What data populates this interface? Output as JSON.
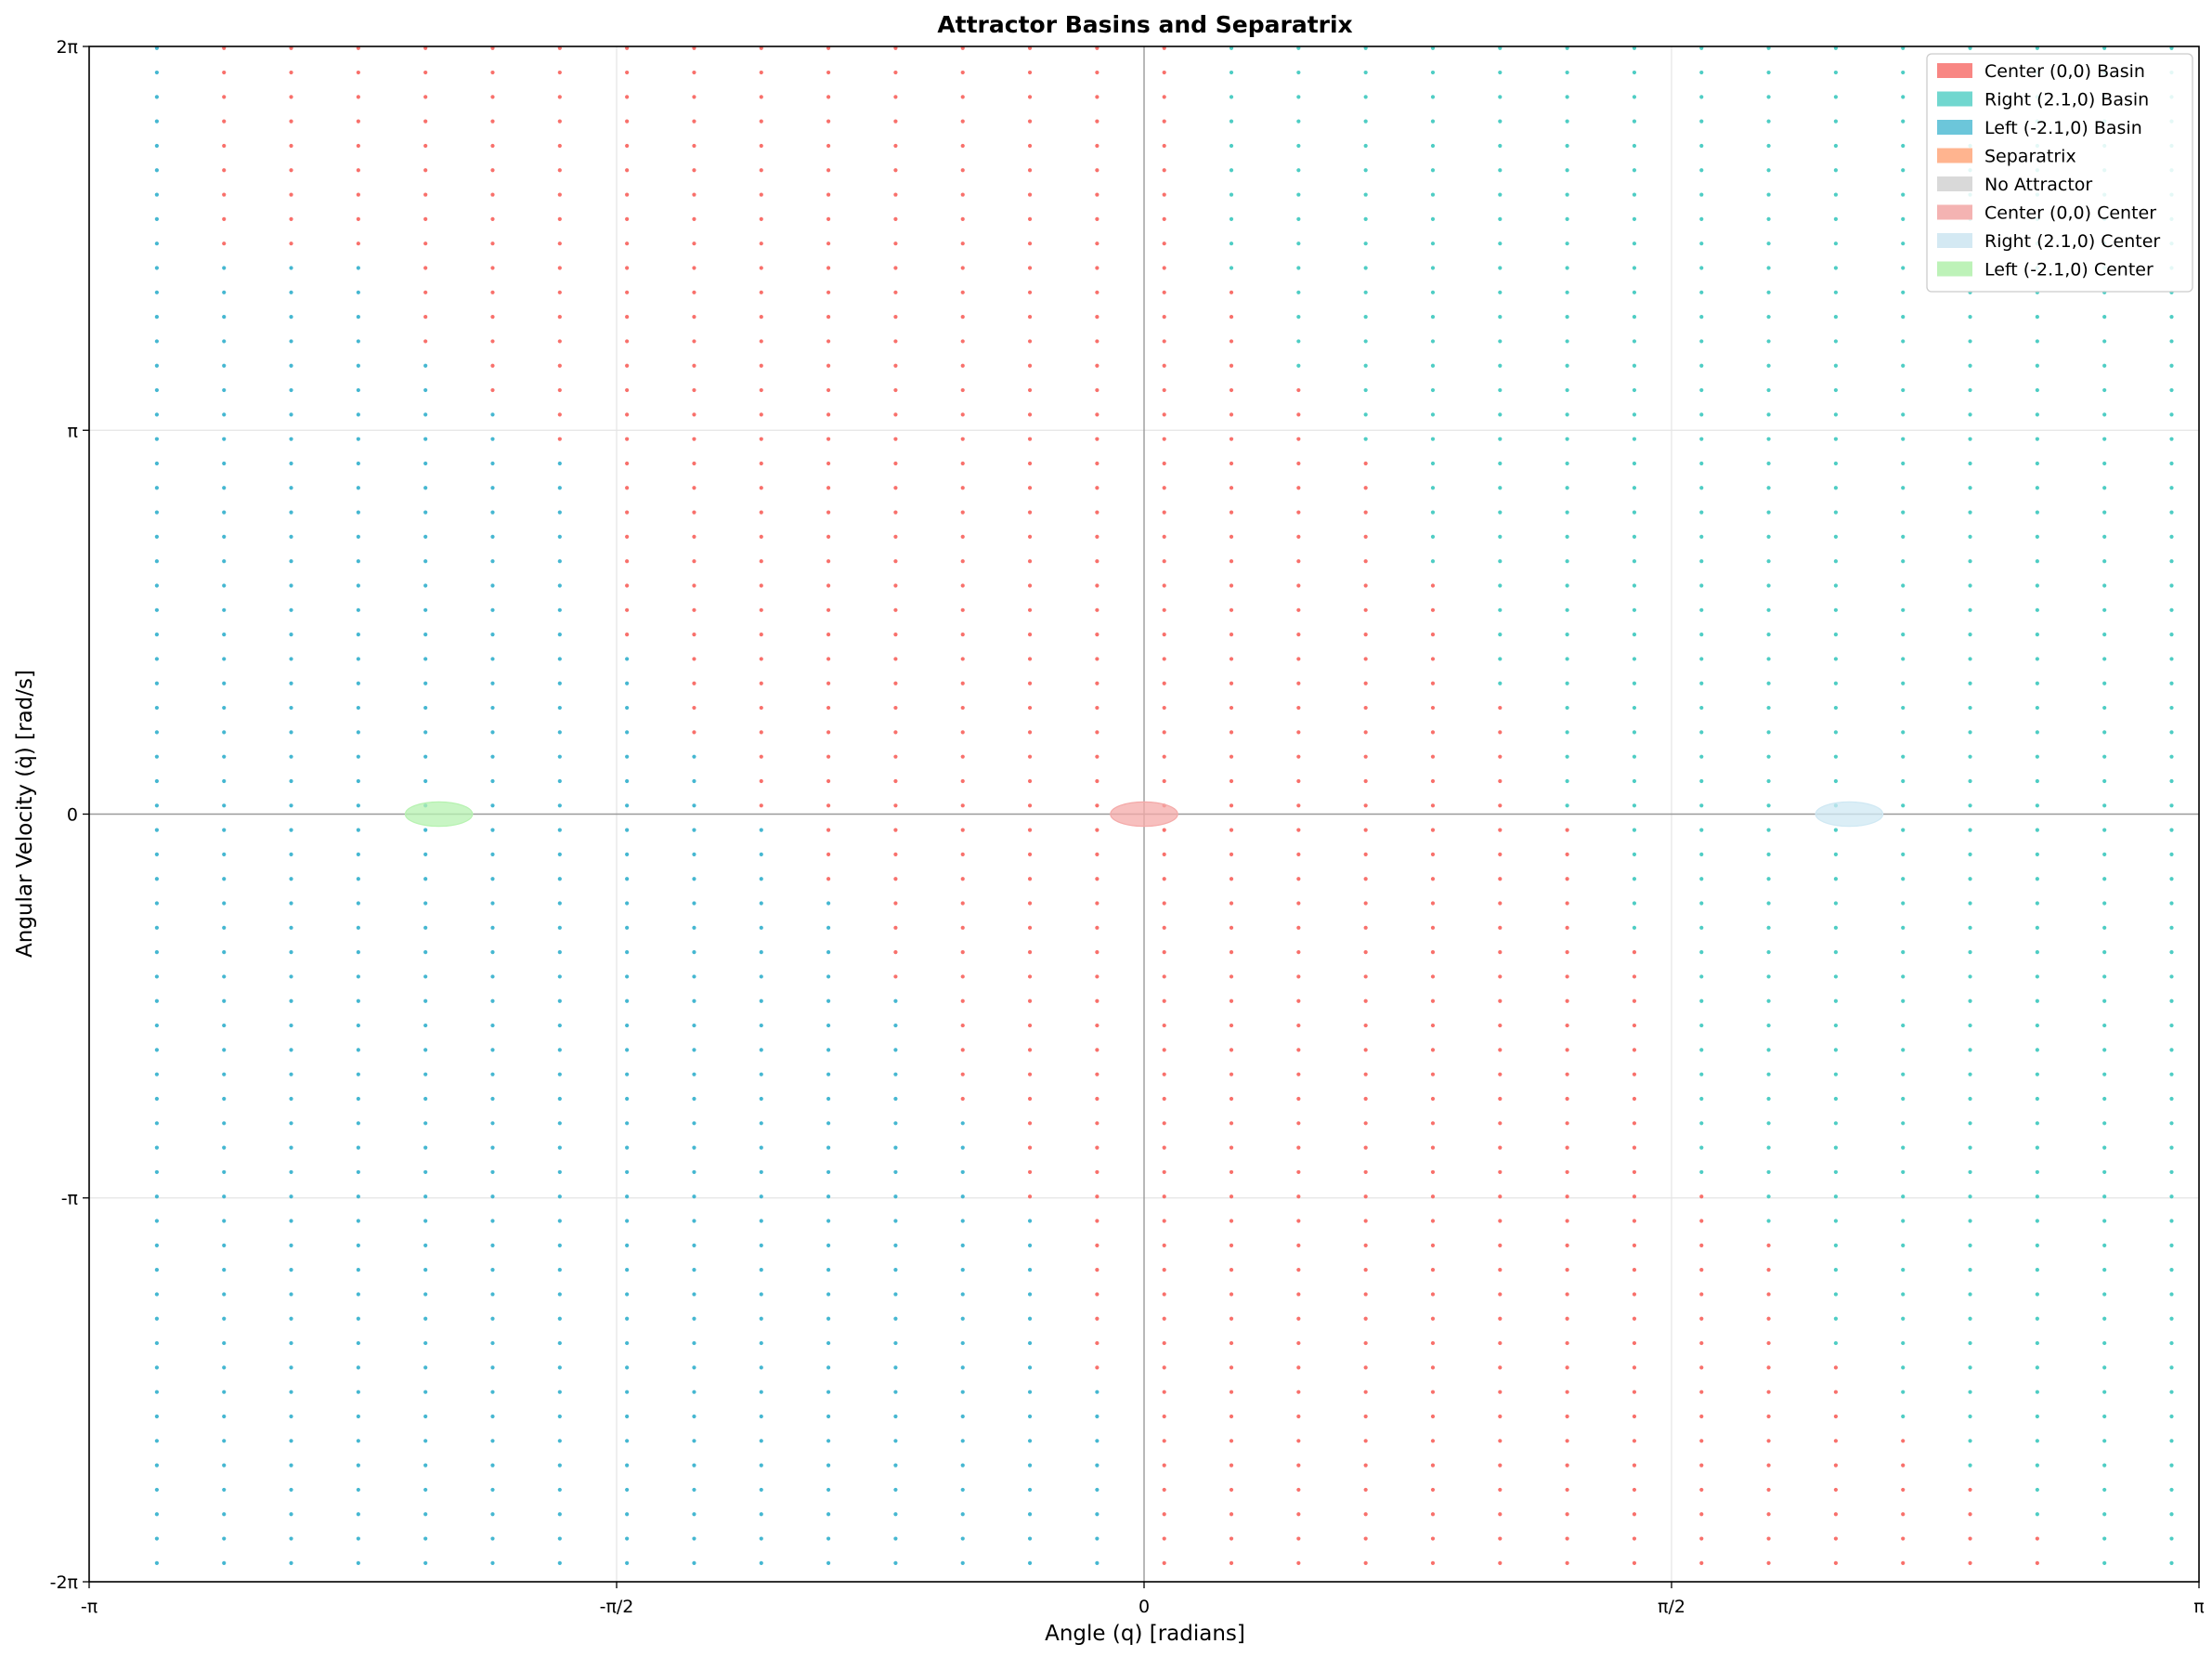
{
  "chart_data": {
    "type": "scatter",
    "title": "Attractor Basins and Separatrix",
    "xlabel": "Angle (q) [radians]",
    "ylabel": "Angular Velocity (q̇) [rad/s]",
    "xlim": [
      -3.14159,
      3.14159
    ],
    "ylim": [
      -6.28319,
      6.28319
    ],
    "x_ticks": [
      {
        "value": -3.14159,
        "label": "-π"
      },
      {
        "value": -1.5708,
        "label": "-π/2"
      },
      {
        "value": 0,
        "label": "0"
      },
      {
        "value": 1.5708,
        "label": "π/2"
      },
      {
        "value": 3.14159,
        "label": "π"
      }
    ],
    "y_ticks": [
      {
        "value": -6.28319,
        "label": "-2π"
      },
      {
        "value": -3.14159,
        "label": "-π"
      },
      {
        "value": 0,
        "label": "0"
      },
      {
        "value": 3.14159,
        "label": "π"
      },
      {
        "value": 6.28319,
        "label": "2π"
      }
    ],
    "grid": true,
    "legend_position": "top-right",
    "grid_sampling": {
      "x_start": -2.94,
      "x_step": 0.2,
      "x_count": 31,
      "y_start": -6.13,
      "y_step": 0.2,
      "y_count": 63
    },
    "basin_columns": [
      {
        "x": -2.94,
        "segments": [
          {
            "from": -6.13,
            "to": 6.28,
            "basin": "left"
          }
        ]
      },
      {
        "x": -2.74,
        "segments": [
          {
            "from": -6.13,
            "to": 4.6,
            "basin": "left"
          },
          {
            "from": 4.6,
            "to": 6.28,
            "basin": "center"
          }
        ]
      },
      {
        "x": -2.54,
        "segments": [
          {
            "from": -6.13,
            "to": 4.6,
            "basin": "left"
          },
          {
            "from": 4.6,
            "to": 6.28,
            "basin": "center"
          }
        ]
      },
      {
        "x": -2.34,
        "segments": [
          {
            "from": -6.13,
            "to": 4.6,
            "basin": "left"
          },
          {
            "from": 4.6,
            "to": 6.28,
            "basin": "center"
          }
        ]
      },
      {
        "x": -2.14,
        "segments": [
          {
            "from": -6.13,
            "to": 3.8,
            "basin": "left"
          },
          {
            "from": 3.8,
            "to": 6.28,
            "basin": "center"
          }
        ]
      },
      {
        "x": -1.94,
        "segments": [
          {
            "from": -6.13,
            "to": 3.4,
            "basin": "left"
          },
          {
            "from": 3.4,
            "to": 6.28,
            "basin": "center"
          }
        ]
      },
      {
        "x": -1.74,
        "segments": [
          {
            "from": -6.13,
            "to": 3.0,
            "basin": "left"
          },
          {
            "from": 3.0,
            "to": 6.28,
            "basin": "center"
          }
        ]
      },
      {
        "x": -1.54,
        "segments": [
          {
            "from": -6.13,
            "to": 1.4,
            "basin": "left"
          },
          {
            "from": 1.4,
            "to": 6.28,
            "basin": "center"
          }
        ]
      },
      {
        "x": -1.34,
        "segments": [
          {
            "from": -6.13,
            "to": 0.6,
            "basin": "left"
          },
          {
            "from": 0.6,
            "to": 6.28,
            "basin": "center"
          }
        ]
      },
      {
        "x": -1.14,
        "segments": [
          {
            "from": -6.13,
            "to": 0.0,
            "basin": "left"
          },
          {
            "from": 0.0,
            "to": 6.28,
            "basin": "center"
          }
        ]
      },
      {
        "x": -0.94,
        "segments": [
          {
            "from": -6.13,
            "to": -0.6,
            "basin": "left"
          },
          {
            "from": -0.6,
            "to": 6.28,
            "basin": "center"
          }
        ]
      },
      {
        "x": -0.74,
        "segments": [
          {
            "from": -6.13,
            "to": -1.5,
            "basin": "left"
          },
          {
            "from": -1.5,
            "to": 6.28,
            "basin": "center"
          }
        ]
      },
      {
        "x": -0.54,
        "segments": [
          {
            "from": -6.13,
            "to": -2.5,
            "basin": "left"
          },
          {
            "from": -2.5,
            "to": 6.28,
            "basin": "center"
          }
        ]
      },
      {
        "x": -0.34,
        "segments": [
          {
            "from": -6.13,
            "to": -3.3,
            "basin": "left"
          },
          {
            "from": -3.3,
            "to": 6.28,
            "basin": "center"
          }
        ]
      },
      {
        "x": -0.14,
        "segments": [
          {
            "from": -6.13,
            "to": -4.7,
            "basin": "left"
          },
          {
            "from": -4.7,
            "to": 6.28,
            "basin": "center"
          }
        ]
      },
      {
        "x": 0.06,
        "segments": [
          {
            "from": -6.13,
            "to": 6.28,
            "basin": "center"
          }
        ]
      },
      {
        "x": 0.26,
        "segments": [
          {
            "from": -6.13,
            "to": 4.4,
            "basin": "center"
          },
          {
            "from": 4.4,
            "to": 6.28,
            "basin": "right"
          }
        ]
      },
      {
        "x": 0.46,
        "segments": [
          {
            "from": -6.13,
            "to": 3.6,
            "basin": "center"
          },
          {
            "from": 3.6,
            "to": 6.28,
            "basin": "right"
          }
        ]
      },
      {
        "x": 0.66,
        "segments": [
          {
            "from": -6.13,
            "to": 3.0,
            "basin": "center"
          },
          {
            "from": 3.0,
            "to": 6.28,
            "basin": "right"
          }
        ]
      },
      {
        "x": 0.86,
        "segments": [
          {
            "from": -6.13,
            "to": 2.0,
            "basin": "center"
          },
          {
            "from": 2.0,
            "to": 6.28,
            "basin": "right"
          }
        ]
      },
      {
        "x": 1.06,
        "segments": [
          {
            "from": -6.13,
            "to": 1.0,
            "basin": "center"
          },
          {
            "from": 1.0,
            "to": 6.28,
            "basin": "right"
          }
        ]
      },
      {
        "x": 1.26,
        "segments": [
          {
            "from": -6.13,
            "to": 0.0,
            "basin": "center"
          },
          {
            "from": 0.0,
            "to": 6.28,
            "basin": "right"
          }
        ]
      },
      {
        "x": 1.46,
        "segments": [
          {
            "from": -6.13,
            "to": -1.0,
            "basin": "center"
          },
          {
            "from": -1.0,
            "to": 6.28,
            "basin": "right"
          }
        ]
      },
      {
        "x": 1.66,
        "segments": [
          {
            "from": -6.13,
            "to": -3.0,
            "basin": "center"
          },
          {
            "from": -3.0,
            "to": 6.28,
            "basin": "right"
          }
        ]
      },
      {
        "x": 1.86,
        "segments": [
          {
            "from": -6.13,
            "to": -3.5,
            "basin": "center"
          },
          {
            "from": -3.5,
            "to": 6.28,
            "basin": "right"
          }
        ]
      },
      {
        "x": 2.06,
        "segments": [
          {
            "from": -6.13,
            "to": -4.5,
            "basin": "center"
          },
          {
            "from": -4.5,
            "to": 6.28,
            "basin": "right"
          }
        ]
      },
      {
        "x": 2.26,
        "segments": [
          {
            "from": -6.13,
            "to": -5.0,
            "basin": "center"
          },
          {
            "from": -5.0,
            "to": 6.28,
            "basin": "right"
          }
        ]
      },
      {
        "x": 2.46,
        "segments": [
          {
            "from": -6.13,
            "to": -5.4,
            "basin": "center"
          },
          {
            "from": -5.4,
            "to": 6.28,
            "basin": "right"
          }
        ]
      },
      {
        "x": 2.66,
        "segments": [
          {
            "from": -6.13,
            "to": -5.8,
            "basin": "center"
          },
          {
            "from": -5.8,
            "to": 6.28,
            "basin": "right"
          }
        ]
      },
      {
        "x": 2.86,
        "segments": [
          {
            "from": -6.13,
            "to": 6.28,
            "basin": "right"
          }
        ]
      },
      {
        "x": 3.06,
        "segments": [
          {
            "from": -6.13,
            "to": 6.28,
            "basin": "right"
          }
        ]
      }
    ],
    "separatrix_points": [
      {
        "x": -2.94,
        "y": 5.13
      },
      {
        "x": -2.94,
        "y": 4.93
      },
      {
        "x": -2.94,
        "y": -3.07
      },
      {
        "x": -2.94,
        "y": -2.87
      },
      {
        "x": -2.74,
        "y": 5.33
      },
      {
        "x": -2.74,
        "y": -5.07
      },
      {
        "x": -2.54,
        "y": 4.93
      },
      {
        "x": -2.54,
        "y": -4.47
      },
      {
        "x": -2.34,
        "y": -5.27
      },
      {
        "x": -2.34,
        "y": -4.87
      },
      {
        "x": -2.14,
        "y": 4.53
      },
      {
        "x": -2.14,
        "y": -6.07
      },
      {
        "x": -1.74,
        "y": 3.13
      },
      {
        "x": -1.54,
        "y": 1.53
      },
      {
        "x": -1.34,
        "y": 0.73
      },
      {
        "x": -0.74,
        "y": -1.67
      },
      {
        "x": -0.54,
        "y": -2.67
      },
      {
        "x": -0.14,
        "y": -4.87
      },
      {
        "x": 0.06,
        "y": 5.53
      },
      {
        "x": 0.06,
        "y": 5.33
      },
      {
        "x": 0.26,
        "y": 4.33
      },
      {
        "x": 1.66,
        "y": -3.07
      },
      {
        "x": 2.06,
        "y": -4.47
      },
      {
        "x": 2.46,
        "y": -5.47
      },
      {
        "x": 2.46,
        "y": 6.13
      },
      {
        "x": 2.86,
        "y": 4.13
      },
      {
        "x": 2.86,
        "y": -5.07
      },
      {
        "x": 3.06,
        "y": 1.73
      },
      {
        "x": 3.06,
        "y": -5.47
      },
      {
        "x": 3.06,
        "y": -5.87
      }
    ],
    "centers": [
      {
        "name": "Center (0,0) Center",
        "x": 0.0,
        "y": 0.0,
        "rx": 0.1,
        "ry": 0.1,
        "color": "#f4a9a8"
      },
      {
        "name": "Right (2.1,0) Center",
        "x": 2.1,
        "y": 0.0,
        "rx": 0.1,
        "ry": 0.1,
        "color": "#cfe8f3"
      },
      {
        "name": "Left (-2.1,0) Center",
        "x": -2.1,
        "y": 0.0,
        "rx": 0.1,
        "ry": 0.1,
        "color": "#b6f2b0"
      }
    ],
    "colors": {
      "center": "#f8706b",
      "right": "#4ecdc4",
      "left": "#45b7d1",
      "separatrix": "#ffa07a",
      "none": "#d3d3d3"
    },
    "legend": [
      {
        "label": "Center (0,0) Basin",
        "color": "#f88683"
      },
      {
        "label": "Right (2.1,0) Basin",
        "color": "#71d7cf"
      },
      {
        "label": "Left (-2.1,0) Basin",
        "color": "#6cc6da"
      },
      {
        "label": "Separatrix",
        "color": "#ffb48f"
      },
      {
        "label": "No Attractor",
        "color": "#d9d9d9"
      },
      {
        "label": "Center (0,0) Center",
        "color": "#f4b3b2"
      },
      {
        "label": "Right (2.1,0) Center",
        "color": "#d4e9f3"
      },
      {
        "label": "Left (-2.1,0) Center",
        "color": "#bdf2b8"
      }
    ]
  }
}
